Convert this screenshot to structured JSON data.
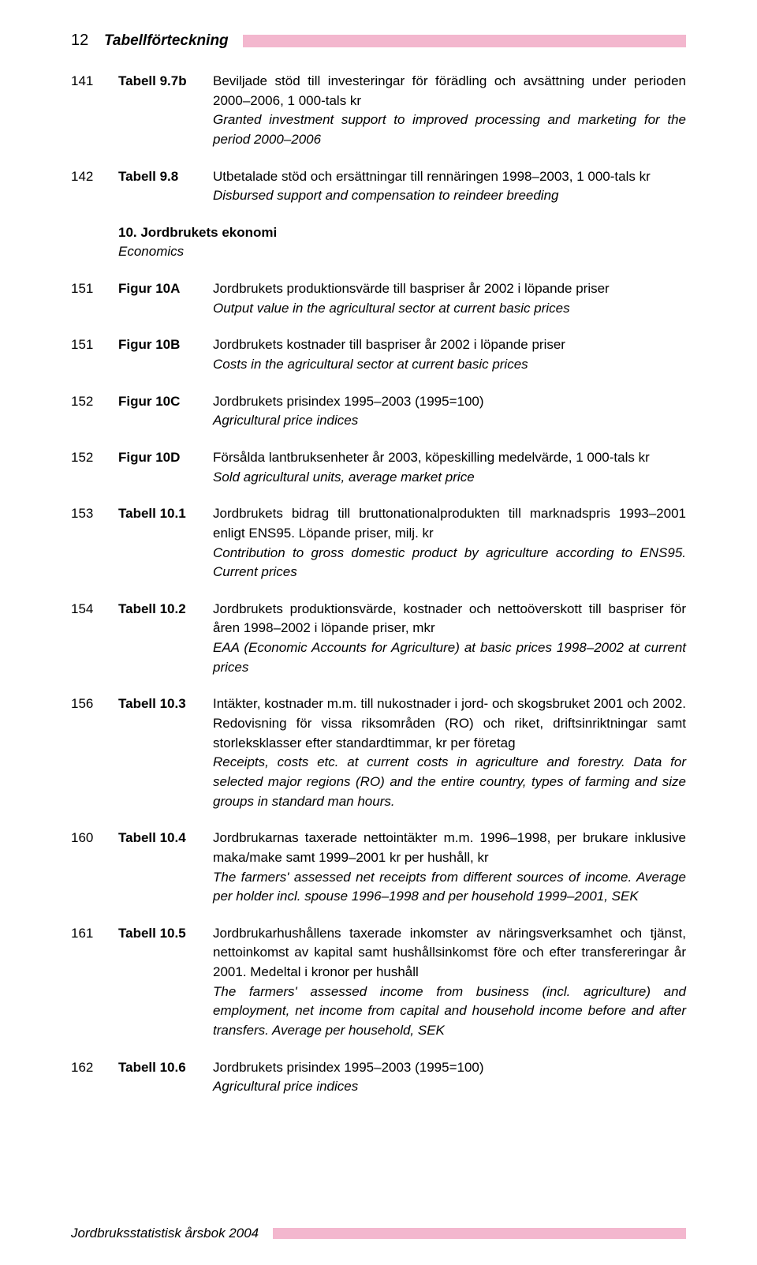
{
  "page_number_top": "12",
  "header_title": "Tabellförteckning",
  "accent_color": "#f3b7ce",
  "text_color": "#000000",
  "background_color": "#ffffff",
  "font_family": "Arial, Helvetica, sans-serif",
  "base_font_size_pt": 13,
  "entries_top": [
    {
      "page": "141",
      "ref": "Tabell 9.7b",
      "sv": "Beviljade stöd till investeringar för förädling och avsättning under perioden 2000–2006, 1 000-tals kr",
      "en": "Granted investment support to improved processing and marketing  for the period 2000–2006"
    },
    {
      "page": "142",
      "ref": "Tabell 9.8",
      "sv": "Utbetalade stöd och ersättningar till rennäringen 1998–2003, 1 000-tals kr",
      "en": "Disbursed support and compensation to reindeer breeding"
    }
  ],
  "section": {
    "sv": "10. Jordbrukets ekonomi",
    "en": "Economics"
  },
  "entries_bottom": [
    {
      "page": "151",
      "ref": "Figur 10A",
      "sv": "Jordbrukets produktionsvärde till baspriser år 2002 i löpande priser",
      "en": "Output value in the agricultural sector at current basic prices"
    },
    {
      "page": "151",
      "ref": "Figur 10B",
      "sv": "Jordbrukets kostnader till baspriser år 2002 i löpande priser",
      "en": "Costs in the agricultural sector at current basic prices"
    },
    {
      "page": "152",
      "ref": "Figur 10C",
      "sv": "Jordbrukets prisindex 1995–2003 (1995=100)",
      "en": "Agricultural price indices"
    },
    {
      "page": "152",
      "ref": "Figur 10D",
      "sv": "Försålda lantbruksenheter år 2003, köpeskilling medelvärde, 1 000-tals kr",
      "en": "Sold agricultural units, average market price"
    },
    {
      "page": "153",
      "ref": "Tabell 10.1",
      "sv": "Jordbrukets bidrag till bruttonationalprodukten till marknadspris 1993–2001 enligt ENS95. Löpande priser, milj. kr",
      "en": "Contribution to gross domestic product by agriculture according to ENS95. Current prices"
    },
    {
      "page": "154",
      "ref": "Tabell 10.2",
      "sv": "Jordbrukets produktionsvärde, kostnader och nettoöverskott till baspriser för åren 1998–2002 i löpande priser, mkr",
      "en": "EAA (Economic Accounts for Agriculture) at basic prices 1998–2002 at current prices"
    },
    {
      "page": "156",
      "ref": "Tabell 10.3",
      "sv": "Intäkter, kostnader m.m. till nukostnader i jord- och skogsbruket 2001 och 2002. Redovisning för vissa riksområden (RO) och riket, driftsinriktningar samt storleksklasser efter standardtimmar, kr per företag",
      "en": "Receipts, costs etc. at current costs in agriculture and forestry. Data for selected major regions (RO) and the entire country, types of farming and size groups in standard man hours."
    },
    {
      "page": "160",
      "ref": "Tabell 10.4",
      "sv": "Jordbrukarnas taxerade nettointäkter m.m. 1996–1998, per brukare inklusive maka/make samt 1999–2001 kr per hushåll, kr",
      "en": "The farmers' assessed net receipts from different sources of income. Average per holder incl. spouse 1996–1998 and per household 1999–2001, SEK"
    },
    {
      "page": "161",
      "ref": "Tabell 10.5",
      "sv": "Jordbrukarhushållens taxerade inkomster av näringsverksamhet och tjänst, nettoinkomst av kapital samt hushållsinkomst före och efter transfereringar år 2001. Medeltal i kronor per hushåll",
      "en": "The farmers' assessed income from business (incl. agriculture) and employment, net income from capital and household income before and after transfers. Average per household, SEK"
    },
    {
      "page": "162",
      "ref": "Tabell 10.6",
      "sv": "Jordbrukets prisindex 1995–2003 (1995=100)",
      "en": "Agricultural price indices"
    }
  ],
  "footer_title": "Jordbruksstatistisk årsbok 2004"
}
